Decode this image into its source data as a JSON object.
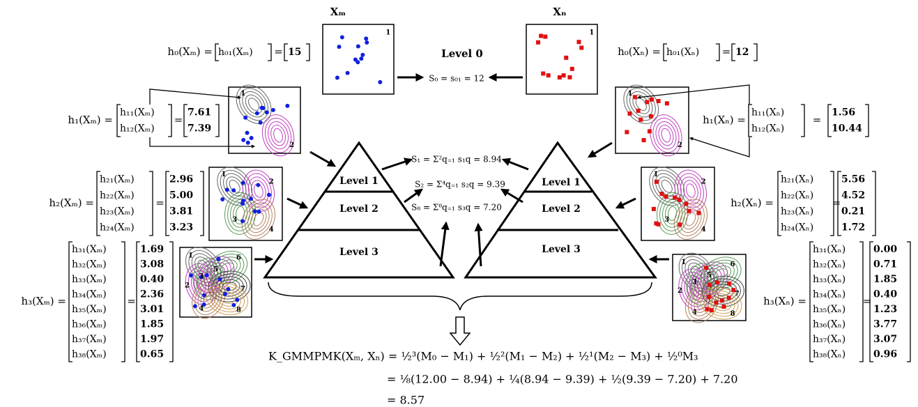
{
  "symbols": {
    "equals": "="
  },
  "left": {
    "title": "Xₘ",
    "levels": [
      {
        "label": "h₀(Xₘ) =",
        "entries": [
          "h₀₁(Xₘ)"
        ],
        "values": [
          "15"
        ],
        "thumb_labels": [
          "1"
        ]
      },
      {
        "label": "h₁(Xₘ) =",
        "entries": [
          "h₁₁(Xₘ)",
          "h₁₂(Xₘ)"
        ],
        "values": [
          "7.61",
          "7.39"
        ],
        "thumb_labels": [
          "1",
          "2"
        ]
      },
      {
        "label": "h₂(Xₘ) =",
        "entries": [
          "h₂₁(Xₘ)",
          "h₂₂(Xₘ)",
          "h₂₃(Xₘ)",
          "h₂₄(Xₘ)"
        ],
        "values": [
          "2.96",
          "5.00",
          "3.81",
          "3.23"
        ],
        "thumb_labels": [
          "1",
          "2",
          "3",
          "4"
        ]
      },
      {
        "label": "h₃(Xₘ) =",
        "entries": [
          "h₃₁(Xₘ)",
          "h₃₂(Xₘ)",
          "h₃₃(Xₘ)",
          "h₃₄(Xₘ)",
          "h₃₅(Xₘ)",
          "h₃₆(Xₘ)",
          "h₃₇(Xₘ)",
          "h₃₈(Xₘ)"
        ],
        "values": [
          "1.69",
          "3.08",
          "0.40",
          "2.36",
          "3.01",
          "1.85",
          "1.97",
          "0.65"
        ],
        "thumb_labels": [
          "1",
          "2",
          "3",
          "4",
          "5",
          "6",
          "7",
          "8"
        ]
      }
    ]
  },
  "right": {
    "title": "Xₙ",
    "levels": [
      {
        "label": "h₀(Xₙ) =",
        "entries": [
          "h₀₁(Xₙ)"
        ],
        "values": [
          "12"
        ],
        "thumb_labels": [
          "1"
        ]
      },
      {
        "label": "h₁(Xₙ) =",
        "entries": [
          "h₁₁(Xₙ)",
          "h₁₂(Xₙ)"
        ],
        "values": [
          "1.56",
          "10.44"
        ],
        "thumb_labels": [
          "1",
          "2"
        ]
      },
      {
        "label": "h₂(Xₙ) =",
        "entries": [
          "h₂₁(Xₙ)",
          "h₂₂(Xₙ)",
          "h₂₃(Xₙ)",
          "h₂₄(Xₙ)"
        ],
        "values": [
          "5.56",
          "4.52",
          "0.21",
          "1.72"
        ],
        "thumb_labels": [
          "1",
          "2",
          "3",
          "4"
        ]
      },
      {
        "label": "h₃(Xₙ) =",
        "entries": [
          "h₃₁(Xₙ)",
          "h₃₂(Xₙ)",
          "h₃₃(Xₙ)",
          "h₃₄(Xₙ)",
          "h₃₅(Xₙ)",
          "h₃₆(Xₙ)",
          "h₃₇(Xₙ)",
          "h₃₈(Xₙ)"
        ],
        "values": [
          "0.00",
          "0.71",
          "1.85",
          "0.40",
          "1.23",
          "3.77",
          "3.07",
          "0.96"
        ],
        "thumb_labels": [
          "1",
          "2",
          "3",
          "4",
          "5",
          "6",
          "7",
          "8"
        ]
      }
    ]
  },
  "center": {
    "level0": "Level 0",
    "s0": "S₀ = s₀₁ = 12",
    "s1": "S₁ = Σ²q₌₁ s₁q = 8.94",
    "s2": "S₂ = Σ⁴q₌₁ s₂q = 9.39",
    "s8": "S₈ = Σ⁸q₌₁ s₃q = 7.20",
    "pyramid_levels": [
      "Level 1",
      "Level 2",
      "Level 3"
    ]
  },
  "formula": {
    "lines": [
      "K_GMMPMK(Xₘ, Xₙ) = ½³(M₀ − M₁) + ½²(M₁ − M₂) + ½¹(M₂ − M₃) + ½⁰M₃",
      "= ⅛(12.00 − 8.94) + ¼(8.94 − 9.39) + ½(9.39 − 7.20) + 7.20",
      "= 8.57"
    ]
  }
}
